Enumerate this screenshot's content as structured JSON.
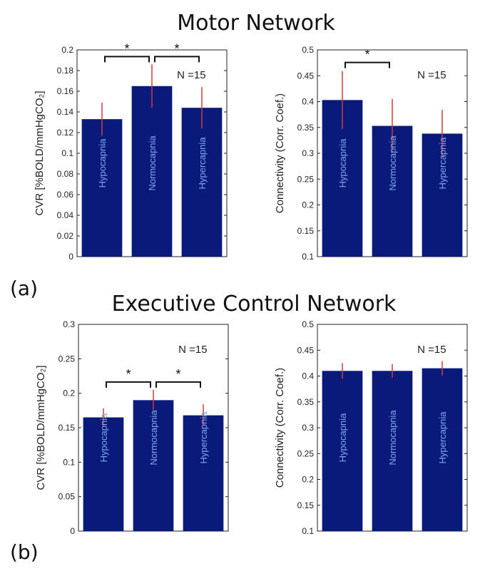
{
  "titles": {
    "top": "Motor Network",
    "bottom": "Executive Control Network"
  },
  "panel_labels": {
    "a": "(a)",
    "b": "(b)"
  },
  "colors": {
    "bar": "#0a1a7a",
    "error": "#d23a3a",
    "axis": "#222222",
    "bar_label": "#7fa8f0"
  },
  "chart_data": [
    {
      "id": "motor-cvr",
      "type": "bar",
      "categories": [
        "Hypocapnia",
        "Normocapnia",
        "Hypercapnia"
      ],
      "values": [
        0.133,
        0.165,
        0.144
      ],
      "errors": [
        0.016,
        0.021,
        0.02
      ],
      "ylim": [
        0,
        0.2
      ],
      "yticks": [
        "0",
        "0.02",
        "0.04",
        "0.06",
        "0.08",
        "0.1",
        "0.12",
        "0.14",
        "0.16",
        "0.18",
        "0.2"
      ],
      "ylabel": "CVR [%BOLD/mmHgCO₂]",
      "annotation": "N =15",
      "significance": [
        {
          "pair": [
            0,
            1
          ],
          "label": "*"
        },
        {
          "pair": [
            1,
            2
          ],
          "label": "*"
        }
      ]
    },
    {
      "id": "motor-connectivity",
      "type": "bar",
      "categories": [
        "Hypocapnia",
        "Normocapnia",
        "Hypercapnia"
      ],
      "values": [
        0.403,
        0.353,
        0.338
      ],
      "errors": [
        0.056,
        0.052,
        0.046
      ],
      "ylim": [
        0.1,
        0.5
      ],
      "yticks": [
        "0.1",
        "0.15",
        "0.2",
        "0.25",
        "0.3",
        "0.35",
        "0.4",
        "0.45",
        "0.5"
      ],
      "ylabel": "Connectivity (Corr. Coef.)",
      "annotation": "N =15",
      "significance": [
        {
          "pair": [
            0,
            1
          ],
          "label": "*"
        }
      ]
    },
    {
      "id": "executive-cvr",
      "type": "bar",
      "categories": [
        "Hypocapnia",
        "Normocapnia",
        "Hypercapnia"
      ],
      "values": [
        0.165,
        0.19,
        0.168
      ],
      "errors": [
        0.013,
        0.015,
        0.016
      ],
      "ylim": [
        0,
        0.3
      ],
      "yticks": [
        "0",
        "0.05",
        "0.1",
        "0.15",
        "0.2",
        "0.25",
        "0.3"
      ],
      "ylabel": "CVR [%BOLD/mmHgCO₂]",
      "annotation": "N =15",
      "significance": [
        {
          "pair": [
            0,
            1
          ],
          "label": "*"
        },
        {
          "pair": [
            1,
            2
          ],
          "label": "*"
        }
      ]
    },
    {
      "id": "executive-connectivity",
      "type": "bar",
      "categories": [
        "Hypocapnia",
        "Normocapnia",
        "Hypercapnia"
      ],
      "values": [
        0.41,
        0.41,
        0.415
      ],
      "errors": [
        0.015,
        0.013,
        0.014
      ],
      "ylim": [
        0.1,
        0.5
      ],
      "yticks": [
        "0.1",
        "0.15",
        "0.2",
        "0.25",
        "0.3",
        "0.35",
        "0.4",
        "0.45",
        "0.5"
      ],
      "ylabel": "Connectivity (Corr. Coef.)",
      "annotation": "N =15",
      "significance": []
    }
  ]
}
